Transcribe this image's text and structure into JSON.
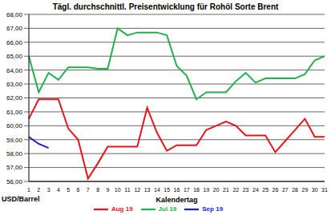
{
  "chart_data": {
    "type": "line",
    "title": "Tägl. durchschnittl. Preisentwicklung für Rohöl Sorte Brent",
    "x_label": "Kalendertag",
    "y_label": "USD/Barrel",
    "categories": [
      "1",
      "2",
      "3",
      "4",
      "5",
      "6",
      "7",
      "8",
      "9",
      "10",
      "11",
      "12",
      "13",
      "14",
      "15",
      "16",
      "17",
      "18",
      "19",
      "20",
      "21",
      "22",
      "23",
      "24",
      "25",
      "26",
      "27",
      "28",
      "29",
      "30",
      "31"
    ],
    "series": [
      {
        "name": "Jul 19",
        "color": "#22b14c",
        "values": [
          65.0,
          62.4,
          63.8,
          63.3,
          64.2,
          64.2,
          64.2,
          64.1,
          64.1,
          67.0,
          66.5,
          66.7,
          66.7,
          66.7,
          66.5,
          64.3,
          63.6,
          61.9,
          62.4,
          62.4,
          62.4,
          63.2,
          63.8,
          63.1,
          63.4,
          63.4,
          63.4,
          63.4,
          63.7,
          64.7,
          65.0
        ]
      },
      {
        "name": "Aug 19",
        "color": "#e8141c",
        "values": [
          60.5,
          61.9,
          61.9,
          61.9,
          59.8,
          59.0,
          56.2,
          57.3,
          58.5,
          58.5,
          58.5,
          58.5,
          61.3,
          59.5,
          58.2,
          58.6,
          58.6,
          58.6,
          59.7,
          60.0,
          60.3,
          60.0,
          59.3,
          59.3,
          59.3,
          58.1,
          58.9,
          59.7,
          60.5,
          59.2,
          59.2
        ]
      },
      {
        "name": "Sep 19",
        "color": "#1a1ad0",
        "values": [
          59.2,
          58.7,
          58.4,
          null,
          null,
          null,
          null,
          null,
          null,
          null,
          null,
          null,
          null,
          null,
          null,
          null,
          null,
          null,
          null,
          null,
          null,
          null,
          null,
          null,
          null,
          null,
          null,
          null,
          null,
          null,
          null
        ]
      }
    ],
    "ylim": [
      56,
      68
    ],
    "yticks": [
      {
        "value": 56,
        "label": "56,00"
      },
      {
        "value": 57,
        "label": "57,00"
      },
      {
        "value": 58,
        "label": "58,00"
      },
      {
        "value": 59,
        "label": "59,00"
      },
      {
        "value": 60,
        "label": "60,00"
      },
      {
        "value": 61,
        "label": "61,00"
      },
      {
        "value": 62,
        "label": "62,00"
      },
      {
        "value": 63,
        "label": "63,00"
      },
      {
        "value": 64,
        "label": "64,00"
      },
      {
        "value": 65,
        "label": "65,00"
      },
      {
        "value": 66,
        "label": "66,00"
      },
      {
        "value": 67,
        "label": "67,00"
      },
      {
        "value": 68,
        "label": "68,00"
      }
    ],
    "grid": true,
    "legend": "bottom"
  }
}
